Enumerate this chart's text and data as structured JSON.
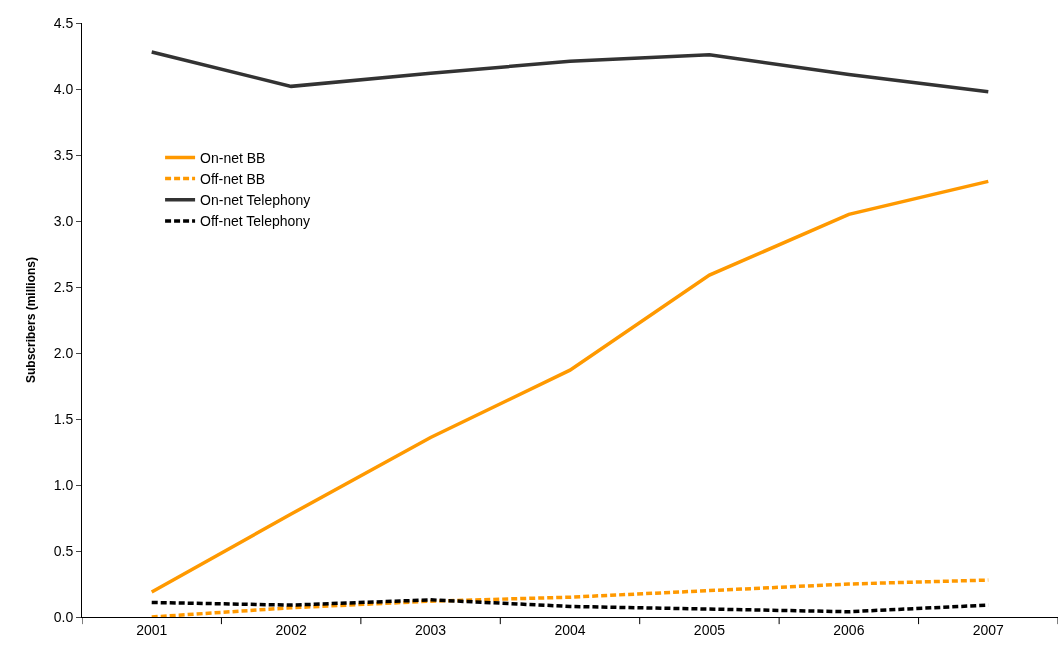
{
  "chart_data": {
    "type": "line",
    "ylabel": "Subscribers (millions)",
    "categories": [
      "2001",
      "2002",
      "2003",
      "2004",
      "2005",
      "2006",
      "2007"
    ],
    "series": [
      {
        "name": "On-net BB",
        "color": "#ff9900",
        "line_style": "solid",
        "values": [
          0.19,
          0.78,
          1.36,
          1.87,
          2.59,
          3.05,
          3.3
        ]
      },
      {
        "name": "Off-net BB",
        "color": "#ff9900",
        "line_style": "dashed",
        "values": [
          0.0,
          0.07,
          0.12,
          0.15,
          0.2,
          0.25,
          0.28
        ]
      },
      {
        "name": "On-net Telephony",
        "color": "#333333",
        "line_style": "solid",
        "values": [
          4.28,
          4.02,
          4.12,
          4.21,
          4.26,
          4.11,
          3.98
        ]
      },
      {
        "name": "Off-net Telephony",
        "color": "#000000",
        "line_style": "dashed",
        "values": [
          0.11,
          0.09,
          0.13,
          0.08,
          0.06,
          0.04,
          0.09
        ]
      }
    ],
    "ylim": [
      0,
      4.5
    ],
    "yticks": [
      {
        "value": 0,
        "label": "0.0"
      },
      {
        "value": 0.5,
        "label": "0.5"
      },
      {
        "value": 1,
        "label": "1.0"
      },
      {
        "value": 1.5,
        "label": "1.5"
      },
      {
        "value": 2,
        "label": "2.0"
      },
      {
        "value": 2.5,
        "label": "2.5"
      },
      {
        "value": 3,
        "label": "3.0"
      },
      {
        "value": 3.5,
        "label": "3.5"
      },
      {
        "value": 4,
        "label": "4.0"
      },
      {
        "value": 4.5,
        "label": "4.5"
      }
    ],
    "grid": false,
    "legend": "top left",
    "marker": "none"
  }
}
